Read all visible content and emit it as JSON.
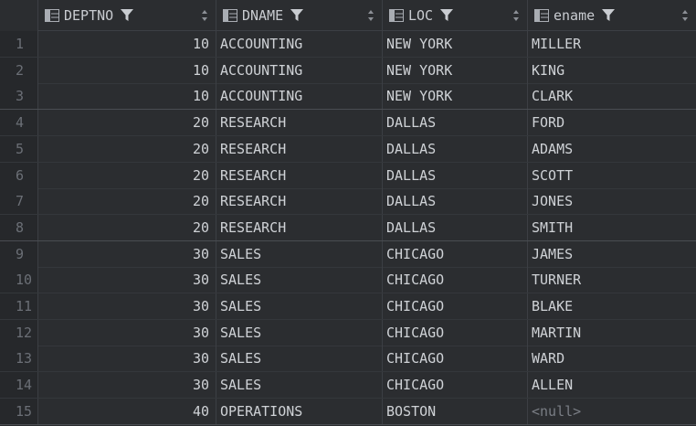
{
  "columns": [
    {
      "name": "DEPTNO"
    },
    {
      "name": "DNAME"
    },
    {
      "name": "LOC"
    },
    {
      "name": "ename"
    }
  ],
  "rows": [
    {
      "num": "1",
      "deptno": "10",
      "dname": "ACCOUNTING",
      "loc": "NEW YORK",
      "ename": "MILLER"
    },
    {
      "num": "2",
      "deptno": "10",
      "dname": "ACCOUNTING",
      "loc": "NEW YORK",
      "ename": "KING"
    },
    {
      "num": "3",
      "deptno": "10",
      "dname": "ACCOUNTING",
      "loc": "NEW YORK",
      "ename": "CLARK"
    },
    {
      "num": "4",
      "deptno": "20",
      "dname": "RESEARCH",
      "loc": "DALLAS",
      "ename": "FORD"
    },
    {
      "num": "5",
      "deptno": "20",
      "dname": "RESEARCH",
      "loc": "DALLAS",
      "ename": "ADAMS"
    },
    {
      "num": "6",
      "deptno": "20",
      "dname": "RESEARCH",
      "loc": "DALLAS",
      "ename": "SCOTT"
    },
    {
      "num": "7",
      "deptno": "20",
      "dname": "RESEARCH",
      "loc": "DALLAS",
      "ename": "JONES"
    },
    {
      "num": "8",
      "deptno": "20",
      "dname": "RESEARCH",
      "loc": "DALLAS",
      "ename": "SMITH"
    },
    {
      "num": "9",
      "deptno": "30",
      "dname": "SALES",
      "loc": "CHICAGO",
      "ename": "JAMES"
    },
    {
      "num": "10",
      "deptno": "30",
      "dname": "SALES",
      "loc": "CHICAGO",
      "ename": "TURNER"
    },
    {
      "num": "11",
      "deptno": "30",
      "dname": "SALES",
      "loc": "CHICAGO",
      "ename": "BLAKE"
    },
    {
      "num": "12",
      "deptno": "30",
      "dname": "SALES",
      "loc": "CHICAGO",
      "ename": "MARTIN"
    },
    {
      "num": "13",
      "deptno": "30",
      "dname": "SALES",
      "loc": "CHICAGO",
      "ename": "WARD"
    },
    {
      "num": "14",
      "deptno": "30",
      "dname": "SALES",
      "loc": "CHICAGO",
      "ename": "ALLEN"
    },
    {
      "num": "15",
      "deptno": "40",
      "dname": "OPERATIONS",
      "loc": "BOSTON",
      "ename": "<null>"
    }
  ],
  "null_value_color": "#7a7e85",
  "icons": {
    "column": "table-column-icon",
    "filter": "filter-icon",
    "sort": "sort-arrows-icon"
  }
}
